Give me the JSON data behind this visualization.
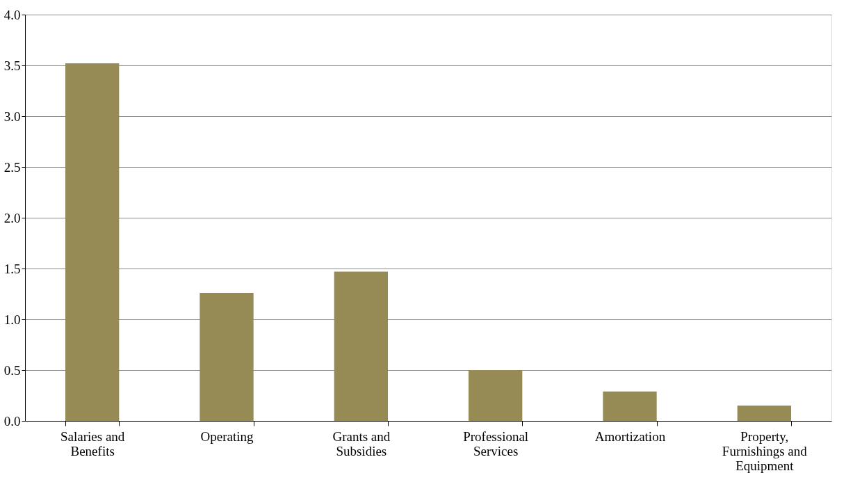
{
  "chart_data": {
    "type": "bar",
    "categories": [
      "Salaries and Benefits",
      "Operating",
      "Grants and Subsidies",
      "Professional Services",
      "Amortization",
      "Property, Furnishings and Equipment"
    ],
    "values": [
      3.52,
      1.26,
      1.47,
      0.5,
      0.29,
      0.15
    ],
    "color": "#968b55",
    "ylim": [
      0,
      4.0
    ],
    "yticks": [
      {
        "value": 0,
        "label": "0.0"
      },
      {
        "value": 0.5,
        "label": "0.5"
      },
      {
        "value": 1,
        "label": "1.0"
      },
      {
        "value": 1.5,
        "label": "1.5"
      },
      {
        "value": 2,
        "label": "2.0"
      },
      {
        "value": 2.5,
        "label": "2.5"
      },
      {
        "value": 3,
        "label": "3.0"
      },
      {
        "value": 3.5,
        "label": "3.5"
      },
      {
        "value": 4,
        "label": "4.0"
      }
    ],
    "grid": "y"
  }
}
